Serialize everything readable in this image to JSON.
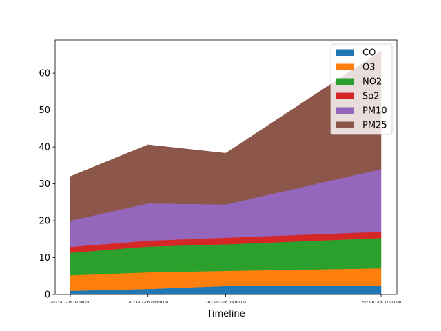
{
  "chart_data": {
    "type": "area",
    "stacked": true,
    "title": "",
    "xlabel": "Timeline",
    "ylabel": "",
    "x": [
      "2023-07-06 07:00:00",
      "2023-07-06 08:00:00",
      "2023-07-06 09:00:00",
      "2023-07-06 11:00:00"
    ],
    "ylim": [
      0,
      69
    ],
    "yticks": [
      0,
      10,
      20,
      30,
      40,
      50,
      60
    ],
    "grid": false,
    "legend_position": "top-right",
    "series": [
      {
        "name": "CO",
        "color": "#1f77b4",
        "values": [
          1.0,
          1.5,
          2.3,
          2.3
        ]
      },
      {
        "name": "O3",
        "color": "#ff7f0e",
        "values": [
          4.2,
          4.5,
          4.1,
          4.8
        ]
      },
      {
        "name": "NO2",
        "color": "#2ca02c",
        "values": [
          6.1,
          7.0,
          7.2,
          8.2
        ]
      },
      {
        "name": "So2",
        "color": "#d62728",
        "values": [
          1.6,
          1.6,
          1.8,
          1.7
        ]
      },
      {
        "name": "PM10",
        "color": "#9467bd",
        "values": [
          7.1,
          10.1,
          9.0,
          17.0
        ]
      },
      {
        "name": "PM25",
        "color": "#8c564b",
        "values": [
          12.0,
          15.9,
          13.9,
          32.0
        ]
      }
    ]
  }
}
